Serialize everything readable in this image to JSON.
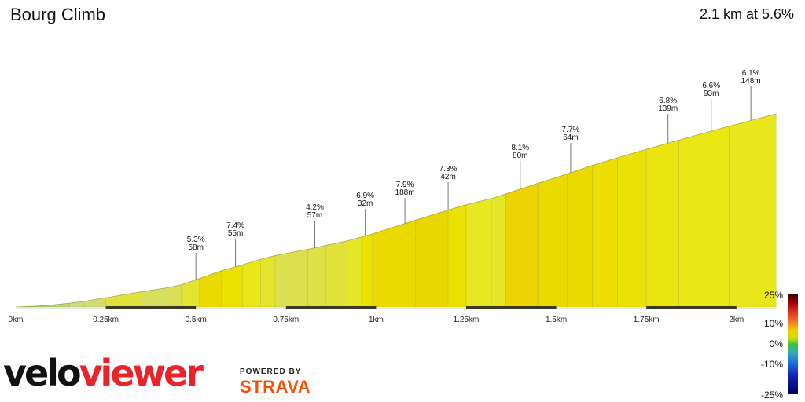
{
  "header": {
    "title": "Bourg Climb",
    "summary": "2.1 km at 5.6%"
  },
  "branding": {
    "logo_velo": "velo",
    "logo_viewer": "viewer",
    "powered_by": "POWERED BY",
    "strava": "STRAVA"
  },
  "chart_data": {
    "type": "area",
    "title": "Bourg Climb",
    "subtitle": "2.1 km at 5.6%",
    "xlabel": "",
    "ylabel": "",
    "xlim": [
      0,
      2.1
    ],
    "x_unit": "km",
    "x_ticks": [
      {
        "value": 0,
        "label": "0km"
      },
      {
        "value": 0.25,
        "label": "0.25km"
      },
      {
        "value": 0.5,
        "label": "0.5km"
      },
      {
        "value": 0.75,
        "label": "0.75km"
      },
      {
        "value": 1.0,
        "label": "1km"
      },
      {
        "value": 1.25,
        "label": "1.25km"
      },
      {
        "value": 1.5,
        "label": "1.5km"
      },
      {
        "value": 1.75,
        "label": "1.75km"
      },
      {
        "value": 2.0,
        "label": "2km"
      }
    ],
    "segment_boundaries_km": [
      0,
      0.06,
      0.11,
      0.15,
      0.19,
      0.25,
      0.35,
      0.42,
      0.46,
      0.51,
      0.57,
      0.63,
      0.68,
      0.72,
      0.81,
      0.86,
      0.92,
      0.96,
      0.99,
      1.11,
      1.2,
      1.25,
      1.32,
      1.36,
      1.45,
      1.53,
      1.6,
      1.67,
      1.75,
      1.84,
      1.98,
      2.11
    ],
    "segment_grades_pct": [
      1.0,
      1.5,
      2.0,
      2.5,
      3.0,
      4.5,
      3.5,
      3.8,
      5.0,
      7.5,
      7.0,
      6.2,
      5.2,
      4.0,
      4.2,
      4.5,
      5.5,
      6.9,
      7.5,
      7.7,
      7.0,
      5.8,
      5.5,
      8.1,
      7.5,
      7.6,
      7.2,
      6.8,
      6.5,
      6.3,
      6.1
    ],
    "elevation_profile_km": [
      0,
      0.06,
      0.11,
      0.15,
      0.19,
      0.25,
      0.35,
      0.42,
      0.46,
      0.51,
      0.57,
      0.63,
      0.68,
      0.72,
      0.81,
      0.86,
      0.92,
      0.96,
      0.99,
      1.11,
      1.2,
      1.25,
      1.32,
      1.36,
      1.45,
      1.53,
      1.6,
      1.67,
      1.75,
      1.84,
      1.98,
      2.11
    ],
    "elevation_gain_m": [
      0,
      0.6,
      1.5,
      2.5,
      3.7,
      6,
      10,
      12.5,
      14.5,
      18.5,
      23.5,
      27.5,
      31,
      33.5,
      37.5,
      40,
      43,
      45.5,
      47.5,
      56.5,
      63,
      66.5,
      70.5,
      73.5,
      80.5,
      86.5,
      92,
      97,
      102.5,
      108.5,
      117.5,
      125.5
    ],
    "annotations": [
      {
        "x": 0.5,
        "grade": "5.3%",
        "length": "58m"
      },
      {
        "x": 0.61,
        "grade": "7.4%",
        "length": "55m"
      },
      {
        "x": 0.83,
        "grade": "4.2%",
        "length": "57m"
      },
      {
        "x": 0.97,
        "grade": "6.9%",
        "length": "32m"
      },
      {
        "x": 1.08,
        "grade": "7.9%",
        "length": "188m"
      },
      {
        "x": 1.2,
        "grade": "7.3%",
        "length": "42m"
      },
      {
        "x": 1.4,
        "grade": "8.1%",
        "length": "80m"
      },
      {
        "x": 1.54,
        "grade": "7.7%",
        "length": "64m"
      },
      {
        "x": 1.81,
        "grade": "6.8%",
        "length": "139m"
      },
      {
        "x": 1.93,
        "grade": "6.6%",
        "length": "93m"
      },
      {
        "x": 2.04,
        "grade": "6.1%",
        "length": "148m"
      }
    ],
    "grade_legend": {
      "labels": [
        "25%",
        "10%",
        "0%",
        "-10%",
        "-25%"
      ],
      "values": [
        25,
        10,
        0,
        -10,
        -25
      ]
    }
  }
}
